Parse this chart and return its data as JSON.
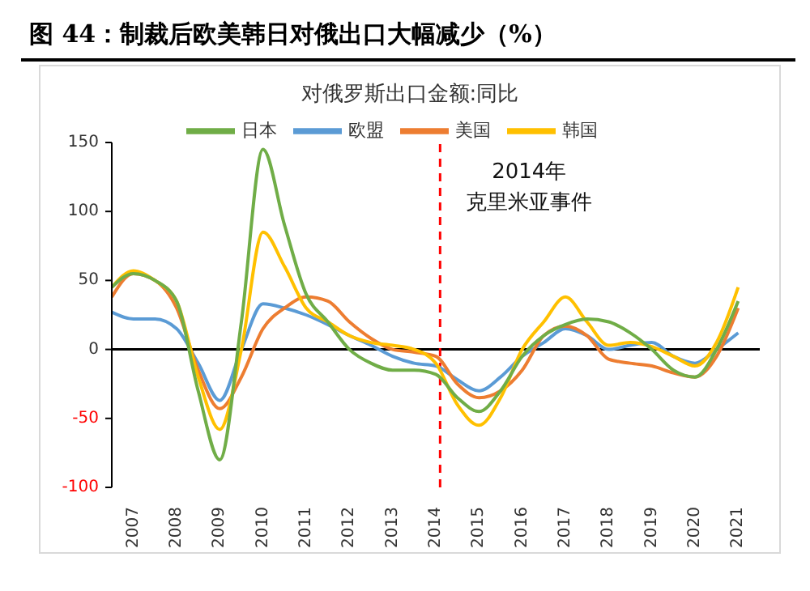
{
  "chart_data": {
    "type": "line",
    "title": "图 44：制裁后欧美韩日对俄出口大幅减少（%）",
    "subtitle": "对俄罗斯出口金额:同比",
    "x": [
      2006.5,
      2007,
      2007.5,
      2008,
      2008.5,
      2009,
      2009.5,
      2010,
      2010.5,
      2011,
      2011.5,
      2012,
      2012.5,
      2013,
      2013.5,
      2014,
      2014.5,
      2015,
      2015.5,
      2016,
      2016.5,
      2017,
      2017.5,
      2018,
      2018.5,
      2019,
      2019.5,
      2020,
      2020.5,
      2021
    ],
    "series": [
      {
        "name": "欧盟",
        "color": "#5b9bd5",
        "values": [
          27,
          22,
          22,
          15,
          -10,
          -37,
          0,
          33,
          30,
          25,
          18,
          10,
          3,
          -5,
          -10,
          -12,
          -22,
          -30,
          -20,
          -5,
          5,
          15,
          10,
          0,
          3,
          5,
          -5,
          -10,
          0,
          12
        ]
      },
      {
        "name": "美国",
        "color": "#ed7d31",
        "values": [
          38,
          55,
          50,
          30,
          -15,
          -43,
          -20,
          15,
          30,
          38,
          35,
          20,
          8,
          0,
          -2,
          -5,
          -25,
          -35,
          -30,
          -15,
          10,
          17,
          10,
          -7,
          -10,
          -12,
          -17,
          -20,
          -5,
          30
        ]
      },
      {
        "name": "韩国",
        "color": "#ffc000",
        "values": [
          45,
          57,
          50,
          35,
          -20,
          -58,
          0,
          85,
          60,
          30,
          20,
          10,
          5,
          3,
          0,
          -10,
          -40,
          -55,
          -35,
          0,
          20,
          38,
          20,
          3,
          5,
          2,
          -5,
          -12,
          5,
          45
        ]
      },
      {
        "name": "日本",
        "color": "#70ad47",
        "values": [
          45,
          55,
          50,
          35,
          -30,
          -80,
          20,
          145,
          90,
          40,
          20,
          0,
          -10,
          -15,
          -15,
          -18,
          -35,
          -45,
          -30,
          -5,
          10,
          18,
          22,
          20,
          12,
          0,
          -15,
          -20,
          0,
          35
        ]
      }
    ],
    "xlim": [
      2006.5,
      2021.5
    ],
    "xticks": [
      2007,
      2008,
      2009,
      2010,
      2011,
      2012,
      2013,
      2014,
      2015,
      2016,
      2017,
      2018,
      2019,
      2020,
      2021
    ],
    "ylim": [
      -100,
      150
    ],
    "yticks": [
      -100,
      -50,
      0,
      50,
      100,
      150
    ],
    "ref_lines": [
      {
        "axis": "x",
        "value": 2014.1,
        "color": "#ff0000",
        "line_style": "dashed"
      }
    ],
    "annotations": [
      "2014年",
      "克里米亚事件"
    ],
    "legend": "top",
    "marker": "none",
    "line_style": "solid"
  }
}
